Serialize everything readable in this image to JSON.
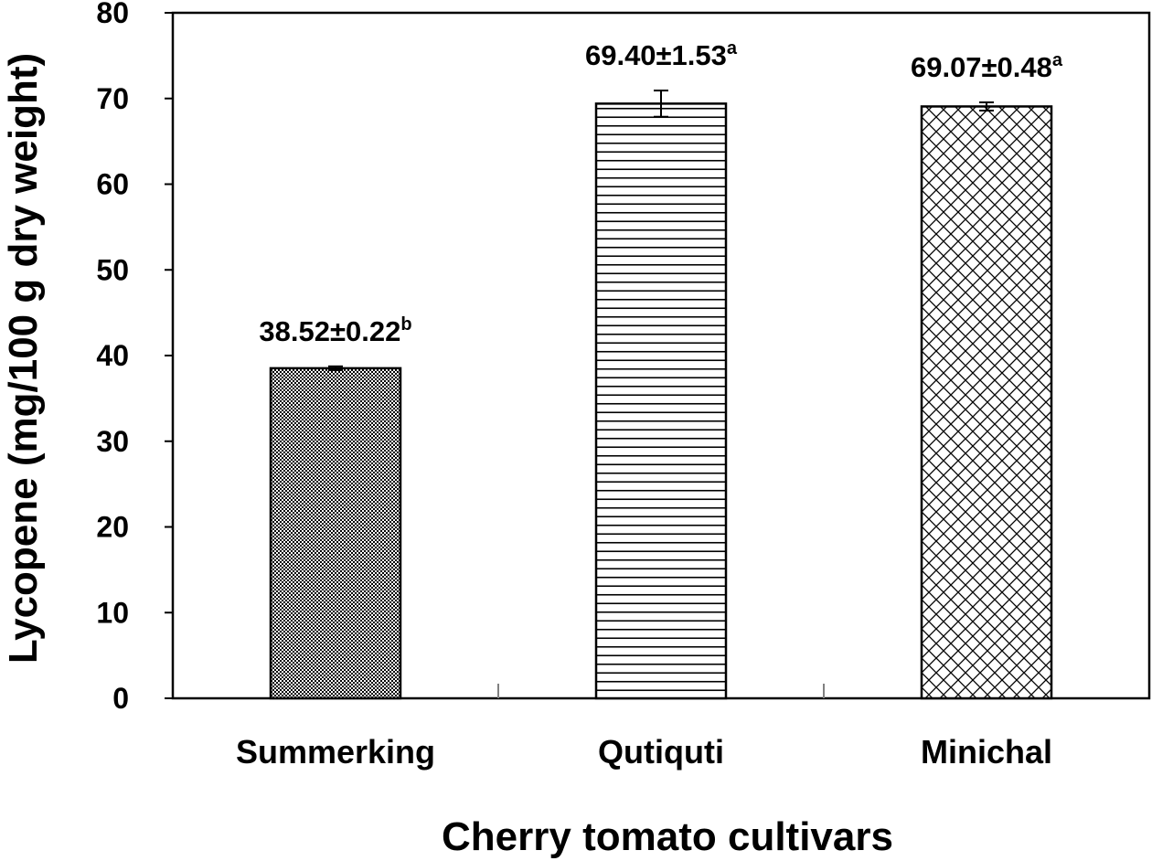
{
  "chart_data": {
    "type": "bar",
    "categories": [
      "Summerking",
      "Qutiquti",
      "Minichal"
    ],
    "values": [
      38.52,
      69.4,
      69.07
    ],
    "errors": [
      0.22,
      1.53,
      0.48
    ],
    "value_labels": [
      "38.52±0.22",
      "69.40±1.53",
      "69.07±0.48"
    ],
    "significance": [
      "b",
      "a",
      "a"
    ],
    "patterns": [
      "fine-checker",
      "horizontal-lines",
      "diagonal-crosshatch"
    ],
    "ylabel": "Lycopene (mg/100 g dry weight)",
    "xlabel": "Cherry tomato cultivars",
    "ylim": [
      0,
      80
    ],
    "yticks": [
      0,
      10,
      20,
      30,
      40,
      50,
      60,
      70,
      80
    ],
    "grid": false,
    "colors": {
      "bar_stroke": "#000000",
      "pattern": "#000000",
      "background": "#ffffff"
    }
  }
}
